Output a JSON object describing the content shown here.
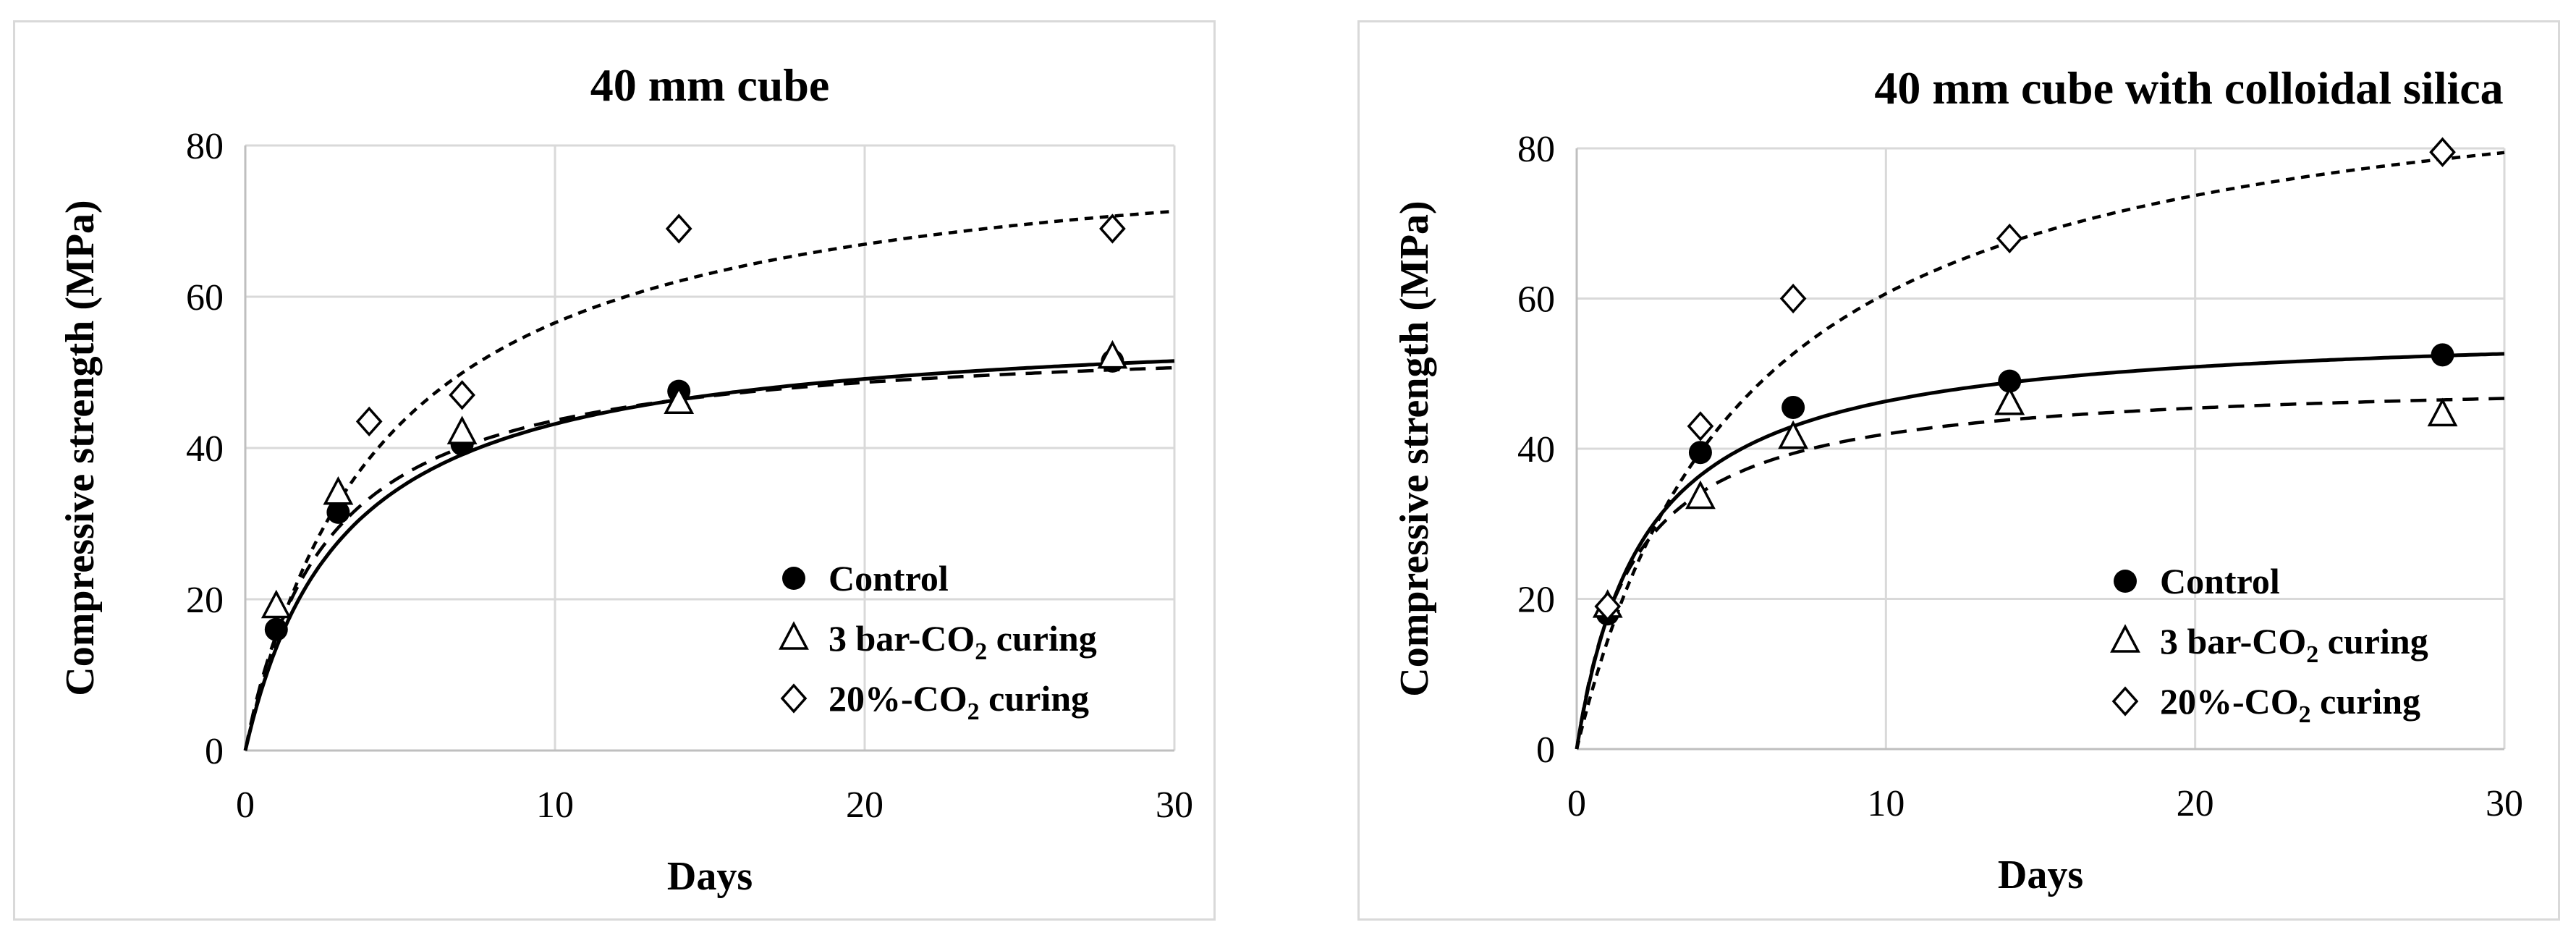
{
  "chart_data": [
    {
      "type": "scatter",
      "title": "40 mm cube",
      "xlabel": "Days",
      "ylabel": "Compressive strength (MPa)",
      "xlim": [
        0,
        30
      ],
      "ylim": [
        0,
        80
      ],
      "xticks": [
        0,
        10,
        20,
        30
      ],
      "yticks": [
        0,
        20,
        40,
        60,
        80
      ],
      "grid": true,
      "legend_position": "bottom-right",
      "series": [
        {
          "name": "Control",
          "label_main": "Control",
          "label_sub": "",
          "label_tail": "",
          "marker": "circle",
          "line": "solid",
          "x": [
            1,
            3,
            7,
            14,
            28
          ],
          "y": [
            16,
            31.5,
            40.5,
            47.5,
            51.5
          ],
          "fit": {
            "a": 57,
            "b": 3.2
          }
        },
        {
          "name": "3 bar-CO2 curing",
          "label_main": "3 bar-CO",
          "label_sub": "2",
          "label_tail": " curing",
          "marker": "triangle",
          "line": "dashed",
          "x": [
            1,
            3,
            7,
            14,
            28
          ],
          "y": [
            19,
            34,
            42,
            46,
            52
          ],
          "fit": {
            "a": 55,
            "b": 2.6
          }
        },
        {
          "name": "20%-CO2 curing",
          "label_main": "20%-CO",
          "label_sub": "2",
          "label_tail": " curing",
          "marker": "diamond",
          "line": "dotted",
          "x": [
            4,
            7,
            14,
            28
          ],
          "y": [
            43.5,
            47,
            69,
            69
          ],
          "fit": {
            "a": 82,
            "b": 4.5
          }
        }
      ]
    },
    {
      "type": "scatter",
      "title": "40 mm cube with colloidal silica",
      "xlabel": "Days",
      "ylabel": "Compressive strength (MPa)",
      "xlim": [
        0,
        30
      ],
      "ylim": [
        0,
        80
      ],
      "xticks": [
        0,
        10,
        20,
        30
      ],
      "yticks": [
        0,
        20,
        40,
        60,
        80
      ],
      "grid": true,
      "legend_position": "bottom-right",
      "series": [
        {
          "name": "Control",
          "label_main": "Control",
          "label_sub": "",
          "label_tail": "",
          "marker": "circle",
          "line": "solid",
          "x": [
            1,
            4,
            7,
            14,
            28
          ],
          "y": [
            18,
            39.5,
            45.5,
            49,
            52.5
          ],
          "fit": {
            "a": 56.5,
            "b": 2.2
          }
        },
        {
          "name": "3 bar-CO2 curing",
          "label_main": "3 bar-CO",
          "label_sub": "2",
          "label_tail": " curing",
          "marker": "triangle",
          "line": "dashed",
          "x": [
            1,
            4,
            7,
            14,
            28
          ],
          "y": [
            19,
            33.5,
            41.5,
            46,
            44.5
          ],
          "fit": {
            "a": 49.5,
            "b": 1.8
          }
        },
        {
          "name": "20%-CO2 curing",
          "label_main": "20%-CO",
          "label_sub": "2",
          "label_tail": " curing",
          "marker": "diamond",
          "line": "dotted",
          "x": [
            1,
            4,
            7,
            14,
            28
          ],
          "y": [
            19,
            43,
            60,
            68,
            79.5
          ],
          "fit": {
            "a": 94,
            "b": 5.5
          }
        }
      ]
    }
  ]
}
